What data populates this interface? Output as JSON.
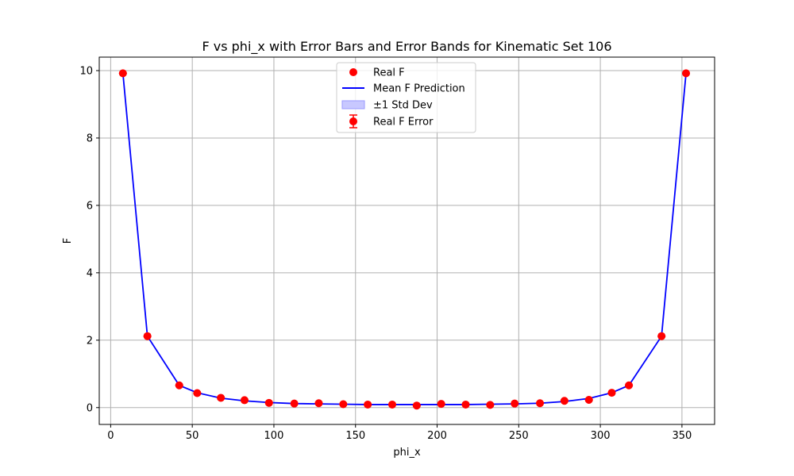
{
  "chart_data": {
    "type": "line",
    "title": "F vs phi_x with Error Bars and Error Bands for Kinematic Set 106",
    "xlabel": "phi_x",
    "ylabel": "F",
    "xlim": [
      -7,
      370
    ],
    "ylim": [
      -0.5,
      10.4
    ],
    "xticks": [
      0,
      50,
      100,
      150,
      200,
      250,
      300,
      350
    ],
    "yticks": [
      0,
      2,
      4,
      6,
      8,
      10
    ],
    "grid": true,
    "legend_position": "top-center",
    "legend": [
      "Real F",
      "Mean F Prediction",
      "±1 Std Dev",
      "Real F Error"
    ],
    "x": [
      7.5,
      22.5,
      42,
      53,
      67.5,
      82,
      97,
      112.5,
      127.5,
      142.5,
      157.5,
      172.5,
      187.5,
      202.5,
      217.5,
      232.5,
      247.5,
      263,
      278,
      293,
      307,
      317.5,
      337.5,
      352.5
    ],
    "series": [
      {
        "name": "Real F",
        "color": "#ff0000",
        "values": [
          9.92,
          2.12,
          0.66,
          0.43,
          0.29,
          0.22,
          0.14,
          0.12,
          0.13,
          0.1,
          0.09,
          0.09,
          0.06,
          0.11,
          0.09,
          0.08,
          0.12,
          0.13,
          0.2,
          0.23,
          0.44,
          0.66,
          2.12,
          9.92
        ],
        "errors": [
          0.05,
          0.05,
          0.04,
          0.04,
          0.03,
          0.03,
          0.02,
          0.02,
          0.02,
          0.02,
          0.02,
          0.02,
          0.02,
          0.02,
          0.02,
          0.02,
          0.02,
          0.02,
          0.03,
          0.03,
          0.04,
          0.04,
          0.05,
          0.05
        ]
      },
      {
        "name": "Mean F Prediction",
        "color": "#0000ff",
        "values": [
          9.92,
          2.12,
          0.66,
          0.44,
          0.28,
          0.2,
          0.15,
          0.12,
          0.11,
          0.1,
          0.09,
          0.09,
          0.09,
          0.09,
          0.09,
          0.1,
          0.11,
          0.13,
          0.18,
          0.27,
          0.44,
          0.66,
          2.12,
          9.92
        ],
        "std": [
          0.03,
          0.03,
          0.02,
          0.02,
          0.01,
          0.01,
          0.01,
          0.01,
          0.01,
          0.01,
          0.01,
          0.01,
          0.01,
          0.01,
          0.01,
          0.01,
          0.01,
          0.01,
          0.01,
          0.01,
          0.02,
          0.02,
          0.03,
          0.03
        ]
      }
    ]
  },
  "colors": {
    "real": "#ff0000",
    "prediction": "#0000ff",
    "band": "#c8c8ff"
  }
}
